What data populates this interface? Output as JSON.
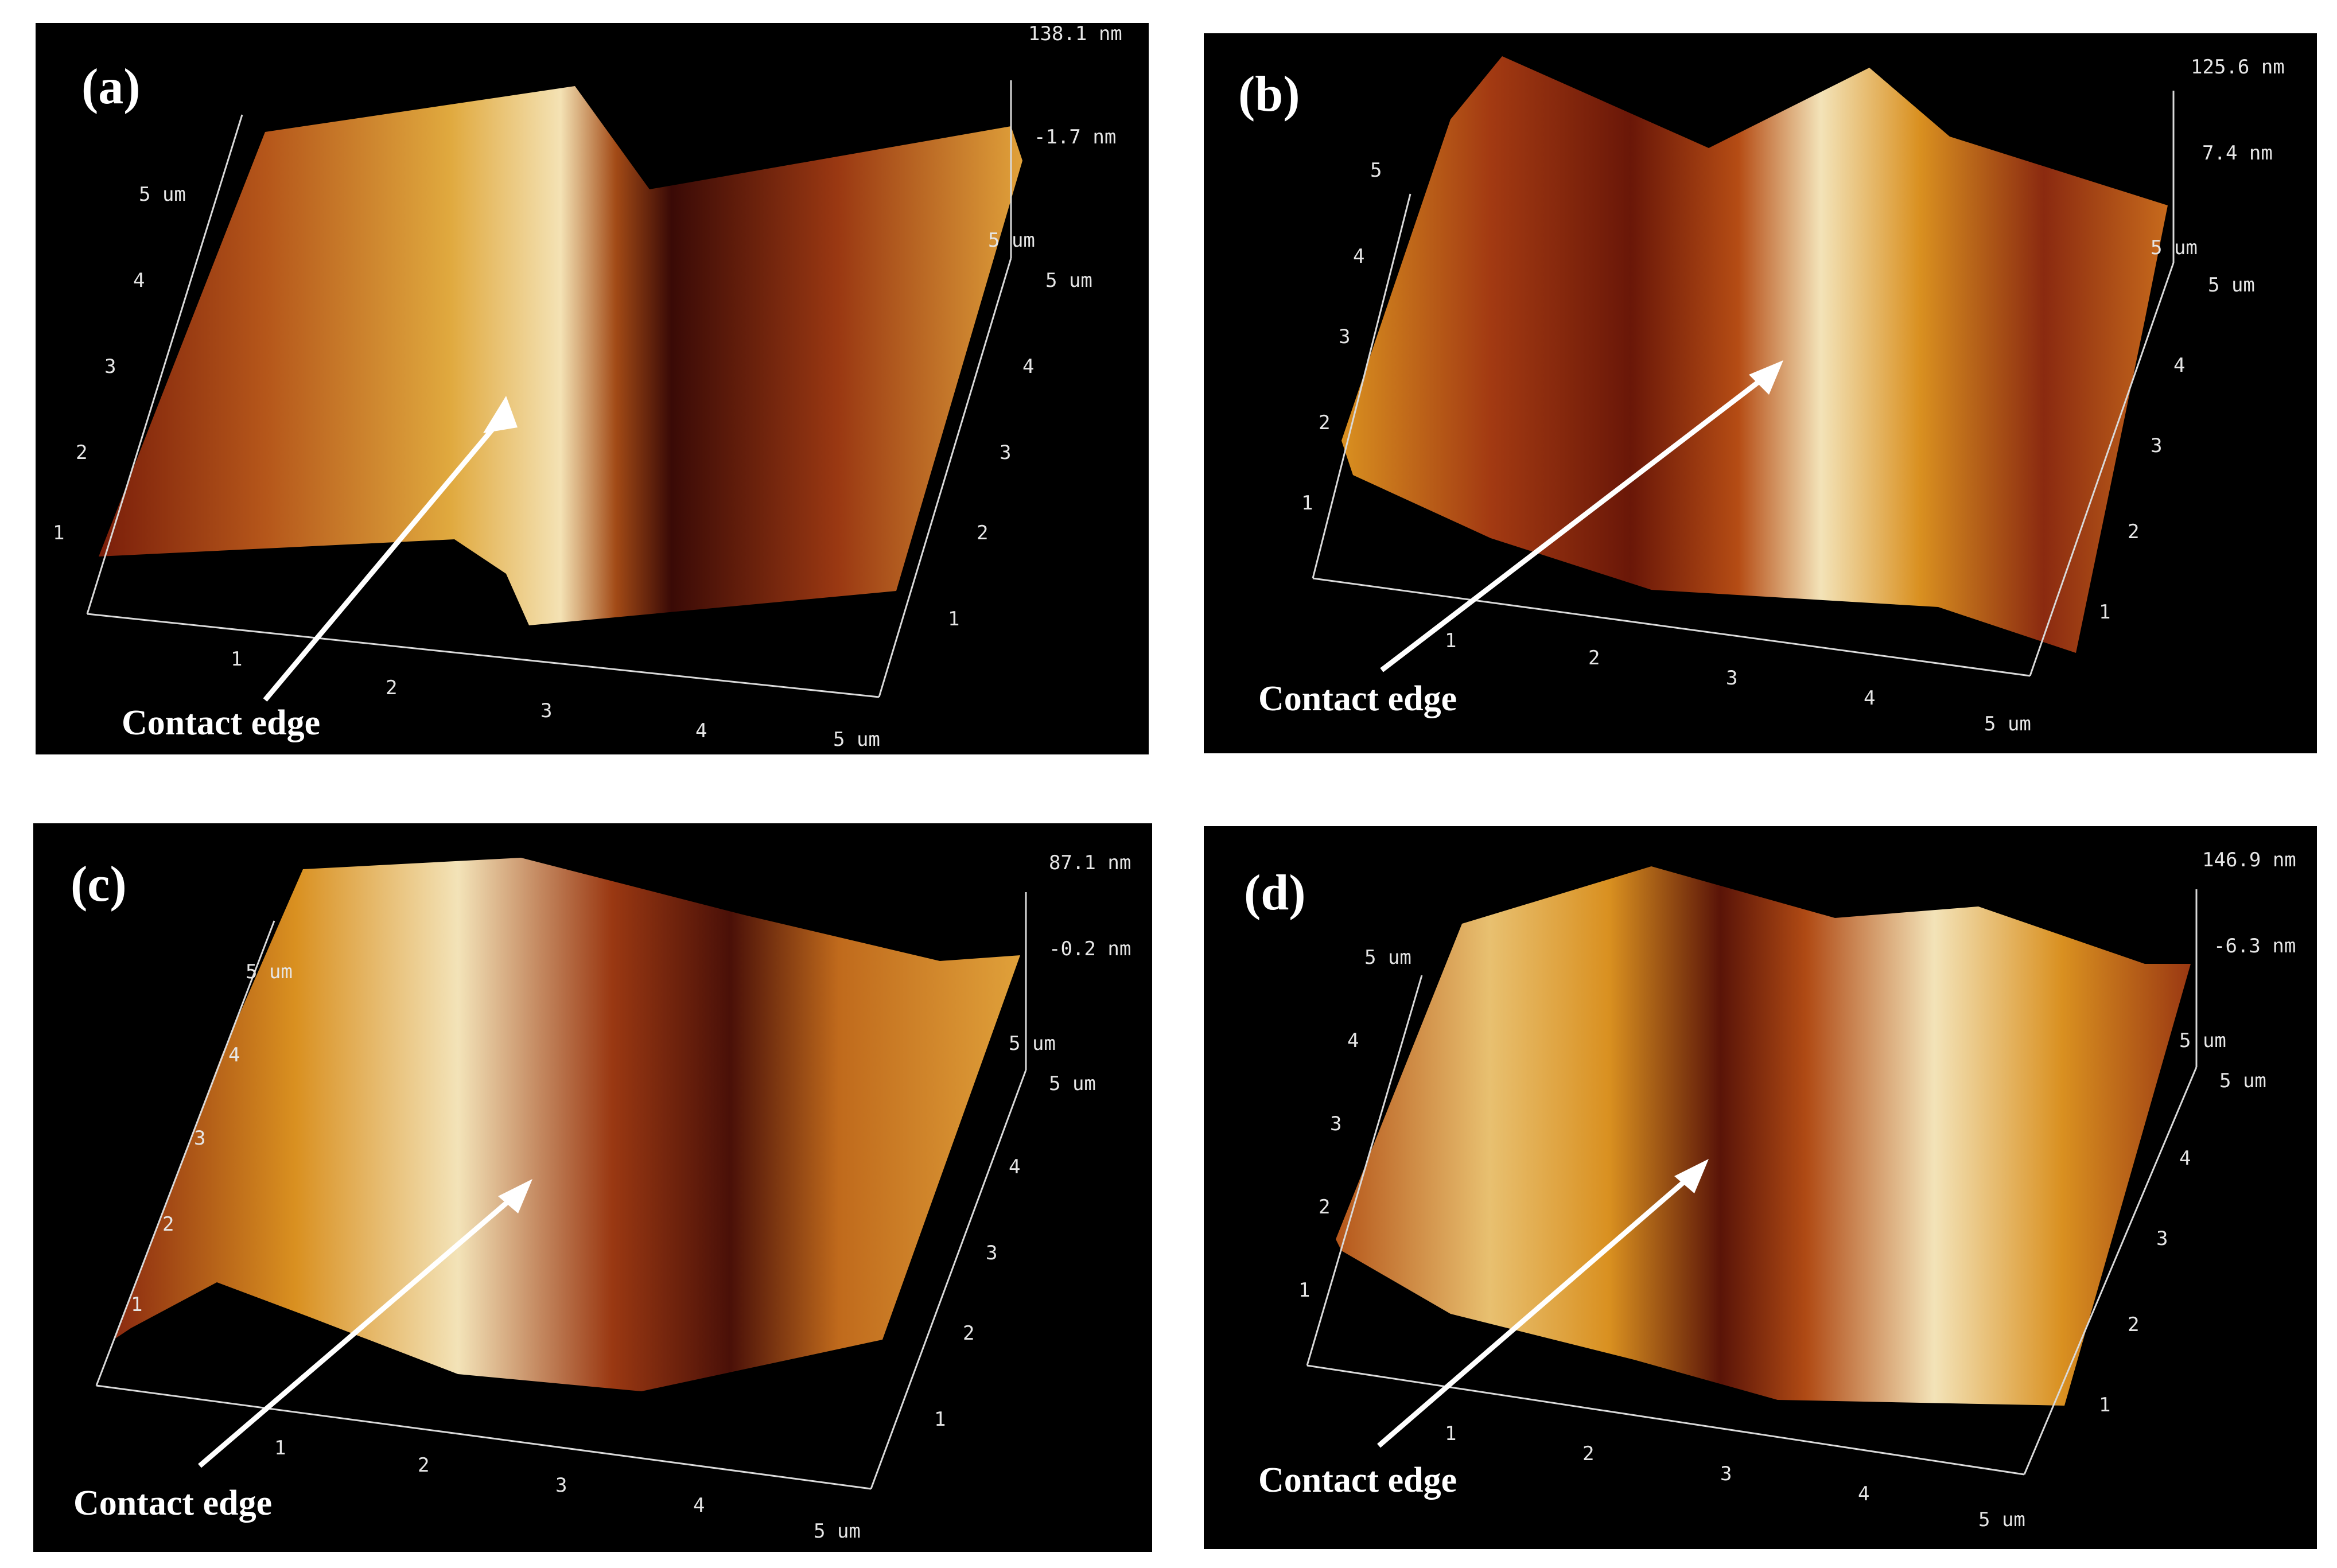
{
  "figure": {
    "panels": [
      {
        "label": "(a)",
        "caption": "Contact edge",
        "zmax": "138.1 nm",
        "zmid": "-1.7 nm",
        "zbot": "5 um",
        "x_ticks": [
          "1",
          "2",
          "3",
          "4",
          "5 um"
        ],
        "y_ticks": [
          "1",
          "2",
          "3",
          "4",
          "5 um"
        ],
        "left_ticks": [
          "1",
          "2",
          "3",
          "4",
          "5 um"
        ]
      },
      {
        "label": "(b)",
        "caption": "Contact edge",
        "zmax": "125.6 nm",
        "zmid": "7.4 nm",
        "zbot": "5 um",
        "x_ticks": [
          "1",
          "2",
          "3",
          "4",
          "5 um"
        ],
        "y_ticks": [
          "1",
          "2",
          "3",
          "4",
          "5 um"
        ],
        "left_ticks": [
          "1",
          "2",
          "3",
          "4",
          "5"
        ]
      },
      {
        "label": "(c)",
        "caption": "Contact edge",
        "zmax": "87.1 nm",
        "zmid": "-0.2 nm",
        "zbot": "5 um",
        "x_ticks": [
          "1",
          "2",
          "3",
          "4",
          "5 um"
        ],
        "y_ticks": [
          "1",
          "2",
          "3",
          "4",
          "5 um"
        ],
        "left_ticks": [
          "1",
          "2",
          "3",
          "4",
          "5 um"
        ]
      },
      {
        "label": "(d)",
        "caption": "Contact edge",
        "zmax": "146.9 nm",
        "zmid": "-6.3 nm",
        "zbot": "5 um",
        "x_ticks": [
          "1",
          "2",
          "3",
          "4",
          "5 um"
        ],
        "y_ticks": [
          "1",
          "2",
          "3",
          "4",
          "5 um"
        ],
        "left_ticks": [
          "1",
          "2",
          "3",
          "4",
          "5 um"
        ]
      }
    ],
    "palette": {
      "dark": "#3a0a06",
      "mid": "#8b2a10",
      "gold": "#d99020",
      "light": "#f3e3b8"
    }
  }
}
